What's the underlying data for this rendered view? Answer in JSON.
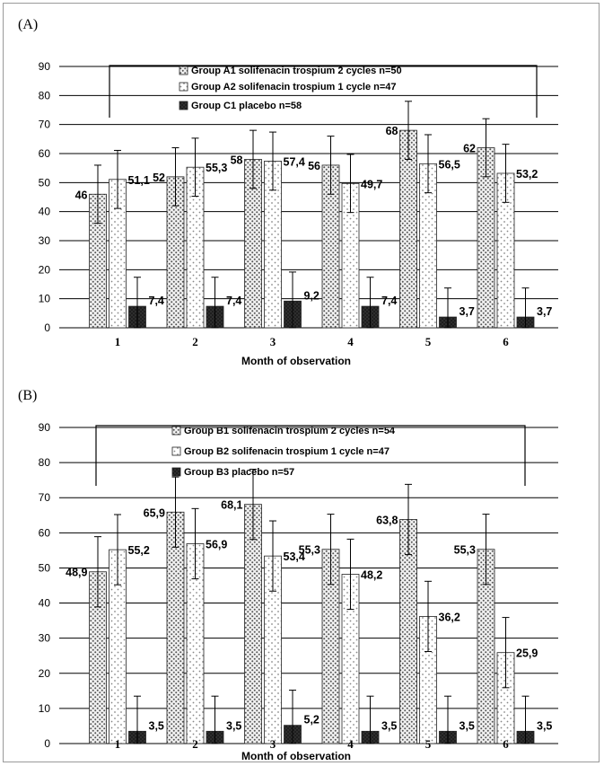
{
  "chart_data": [
    {
      "panel_label": "(A)",
      "type": "bar",
      "categories": [
        "1",
        "2",
        "3",
        "4",
        "5",
        "6"
      ],
      "xlabel": "Month of observation",
      "ylabel": "",
      "ylim": [
        0,
        90
      ],
      "yticks": [
        "0",
        "10",
        "20",
        "30",
        "40",
        "50",
        "60",
        "70",
        "80",
        "90"
      ],
      "grid": true,
      "legend_position": "top",
      "series": [
        {
          "name": "Group A1 solifenacin trospium 2 cycles n=50",
          "pattern": "dots-dense",
          "values": [
            46,
            52,
            58,
            56,
            68,
            62
          ],
          "labels": [
            "46",
            "52",
            "58",
            "56",
            "68",
            "62"
          ],
          "err": [
            10,
            10,
            10,
            10,
            10,
            10
          ]
        },
        {
          "name": "Group A2 solifenacin trospium 1 cycle n=47",
          "pattern": "dots-sparse",
          "values": [
            51.1,
            55.3,
            57.4,
            49.7,
            56.5,
            53.2
          ],
          "labels": [
            "51,1",
            "55,3",
            "57,4",
            "49,7",
            "56,5",
            "53,2"
          ],
          "err": [
            10,
            10,
            10,
            10,
            10,
            10
          ]
        },
        {
          "name": "Group C1 placebo n=58",
          "pattern": "dark",
          "values": [
            7.4,
            7.4,
            9.2,
            7.4,
            3.7,
            3.7
          ],
          "labels": [
            "7,4",
            "7,4",
            "9,2",
            "7,4",
            "3,7",
            "3,7"
          ],
          "err": [
            10,
            10,
            10,
            10,
            10,
            10
          ]
        }
      ]
    },
    {
      "panel_label": "(B)",
      "type": "bar",
      "categories": [
        "1",
        "2",
        "3",
        "4",
        "5",
        "6"
      ],
      "xlabel": "Month of observation",
      "ylabel": "",
      "ylim": [
        0,
        90
      ],
      "yticks": [
        "0",
        "10",
        "20",
        "30",
        "40",
        "50",
        "60",
        "70",
        "80",
        "90"
      ],
      "grid": true,
      "legend_position": "top",
      "series": [
        {
          "name": "Group B1 solifenacin trospium 2 cycles n=54",
          "pattern": "dots-dense",
          "values": [
            48.9,
            65.9,
            68.1,
            55.3,
            63.8,
            55.3
          ],
          "labels": [
            "48,9",
            "65,9",
            "68,1",
            "55,3",
            "63,8",
            "55,3"
          ],
          "err": [
            10,
            10,
            10,
            10,
            10,
            10
          ]
        },
        {
          "name": "Group B2 solifenacin trospium 1 cycle n=47",
          "pattern": "dots-sparse",
          "values": [
            55.2,
            56.9,
            53.4,
            48.2,
            36.2,
            25.9
          ],
          "labels": [
            "55,2",
            "56,9",
            "53,4",
            "48,2",
            "36,2",
            "25,9"
          ],
          "err": [
            10,
            10,
            10,
            10,
            10,
            10
          ]
        },
        {
          "name": "Group B3 placebo n=57",
          "pattern": "dark",
          "values": [
            3.5,
            3.5,
            5.2,
            3.5,
            3.5,
            3.5
          ],
          "labels": [
            "3,5",
            "3,5",
            "5,2",
            "3,5",
            "3,5",
            "3,5"
          ],
          "err": [
            10,
            10,
            10,
            10,
            10,
            10
          ]
        }
      ]
    }
  ]
}
